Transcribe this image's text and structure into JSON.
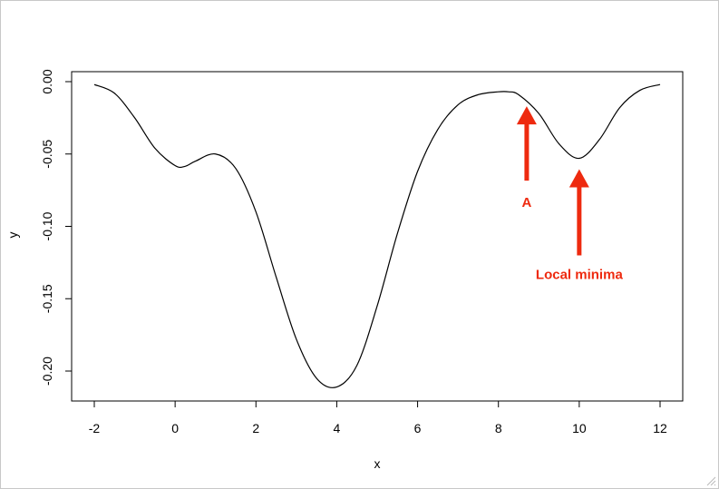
{
  "chart_data": {
    "type": "line",
    "title": "",
    "xlabel": "x",
    "ylabel": "y",
    "xlim": [
      -2,
      12
    ],
    "ylim": [
      -0.21,
      0.0
    ],
    "x_ticks": [
      -2,
      0,
      2,
      4,
      6,
      8,
      10,
      12
    ],
    "x_tick_labels": [
      "-2",
      "0",
      "2",
      "4",
      "6",
      "8",
      "10",
      "12"
    ],
    "y_ticks": [
      0.0,
      -0.05,
      -0.1,
      -0.15,
      -0.2
    ],
    "y_tick_labels": [
      "0.00",
      "-0.05",
      "-0.10",
      "-0.15",
      "-0.20"
    ],
    "grid": false,
    "line_color": "#000000",
    "annotation_color": "#ee2a0f",
    "series": [
      {
        "x": [
          -2.0,
          -1.5,
          -1.0,
          -0.5,
          0.0,
          0.25,
          0.5,
          1.0,
          1.5,
          2.0,
          2.5,
          3.0,
          3.5,
          4.0,
          4.5,
          5.0,
          5.5,
          6.0,
          6.5,
          7.0,
          7.5,
          8.0,
          8.25,
          8.5,
          9.0,
          9.5,
          10.0,
          10.5,
          11.0,
          11.5,
          12.0
        ],
        "y": [
          -0.002,
          -0.008,
          -0.025,
          -0.046,
          -0.058,
          -0.0585,
          -0.055,
          -0.05,
          -0.06,
          -0.09,
          -0.135,
          -0.178,
          -0.205,
          -0.211,
          -0.196,
          -0.155,
          -0.105,
          -0.062,
          -0.033,
          -0.016,
          -0.009,
          -0.007,
          -0.007,
          -0.009,
          -0.022,
          -0.043,
          -0.053,
          -0.04,
          -0.018,
          -0.006,
          -0.002
        ]
      }
    ],
    "annotations": [
      {
        "label": "A",
        "x": 8.7,
        "y": -0.012
      },
      {
        "label": "Local minima",
        "x": 10.0,
        "y": -0.053
      }
    ]
  }
}
